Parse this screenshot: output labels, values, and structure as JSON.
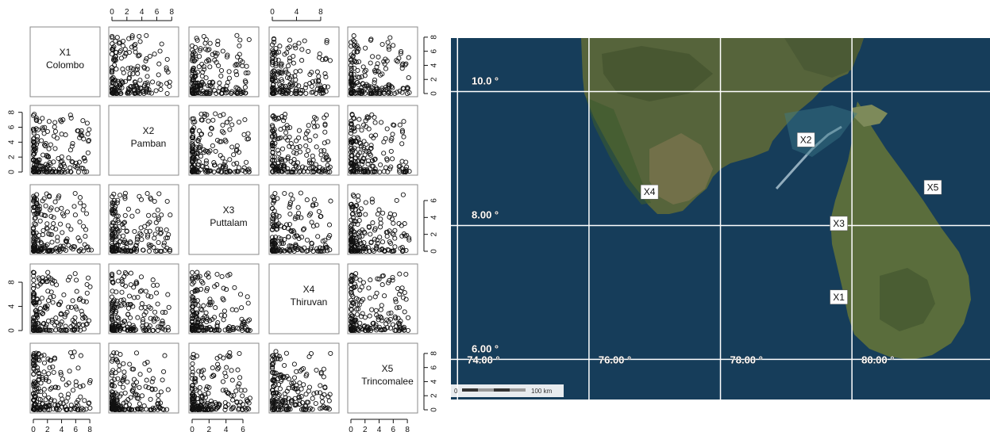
{
  "chart_data": [
    {
      "type": "scatter",
      "variables": [
        {
          "id": "X1",
          "name": "Colombo"
        },
        {
          "id": "X2",
          "name": "Pamban"
        },
        {
          "id": "X3",
          "name": "Puttalam"
        },
        {
          "id": "X4",
          "name": "Thiruvan"
        },
        {
          "id": "X5",
          "name": "Trincomalee"
        }
      ],
      "axis_ranges": {
        "X1": [
          0,
          9
        ],
        "X2": [
          0,
          8.5
        ],
        "X3": [
          0,
          7.5
        ],
        "X4": [
          0,
          10.5
        ],
        "X5": [
          0,
          9
        ]
      },
      "axis_ticks": {
        "X1": [
          "0",
          "2",
          "4",
          "6",
          "8"
        ],
        "X2": [
          "0",
          "2",
          "4",
          "6",
          "8"
        ],
        "X3": [
          "0",
          "2",
          "4",
          "6"
        ],
        "X4": [
          "0",
          "4",
          "8"
        ],
        "X5": [
          "0",
          "2",
          "4",
          "6",
          "8"
        ]
      },
      "top_axis_ticks": {
        "X2": [
          "0",
          "2",
          "4",
          "6",
          "8"
        ],
        "X4": [
          "0",
          "4",
          "8"
        ]
      },
      "bottom_axis_ticks": {
        "X1": [
          "0",
          "2",
          "4",
          "6",
          "8"
        ],
        "X3": [
          "0",
          "2",
          "4",
          "6"
        ],
        "X5": [
          "0",
          "2",
          "4",
          "6",
          "8"
        ]
      },
      "left_axis_ticks": {
        "X2": [
          "0",
          "2",
          "4",
          "6",
          "8"
        ],
        "X4": [
          "0",
          "4",
          "8"
        ]
      },
      "right_axis_ticks": {
        "X1": [
          "0",
          "2",
          "4",
          "6",
          "8"
        ],
        "X3": [
          "0",
          "2",
          "4",
          "6"
        ],
        "X5": [
          "0",
          "2",
          "4",
          "6",
          "8"
        ]
      },
      "point_style": "open-circle",
      "grid": false,
      "legend": "none"
    },
    {
      "type": "map",
      "latitude_labels": [
        "10.0 °",
        "8.00 °",
        "6.00 °"
      ],
      "latitudes": [
        10,
        8,
        6
      ],
      "longitude_labels": [
        "74.00 °",
        "76.00 °",
        "78.00 °",
        "80.00 °"
      ],
      "longitudes": [
        74,
        76,
        78,
        80
      ],
      "extent": {
        "lon": [
          73.9,
          82.1
        ],
        "lat": [
          5.4,
          10.8
        ]
      },
      "stations": [
        {
          "label": "X1",
          "lon": 79.8,
          "lat": 6.93
        },
        {
          "label": "X2",
          "lon": 79.3,
          "lat": 9.28
        },
        {
          "label": "X3",
          "lon": 79.8,
          "lat": 8.03
        },
        {
          "label": "X4",
          "lon": 76.92,
          "lat": 8.5
        },
        {
          "label": "X5",
          "lon": 81.23,
          "lat": 8.57
        }
      ],
      "scale_bar": {
        "start": "0",
        "end": "100 km"
      },
      "colors": {
        "ocean": "#163d5a",
        "land": "#59663c",
        "grid": "#ffffff"
      }
    }
  ]
}
